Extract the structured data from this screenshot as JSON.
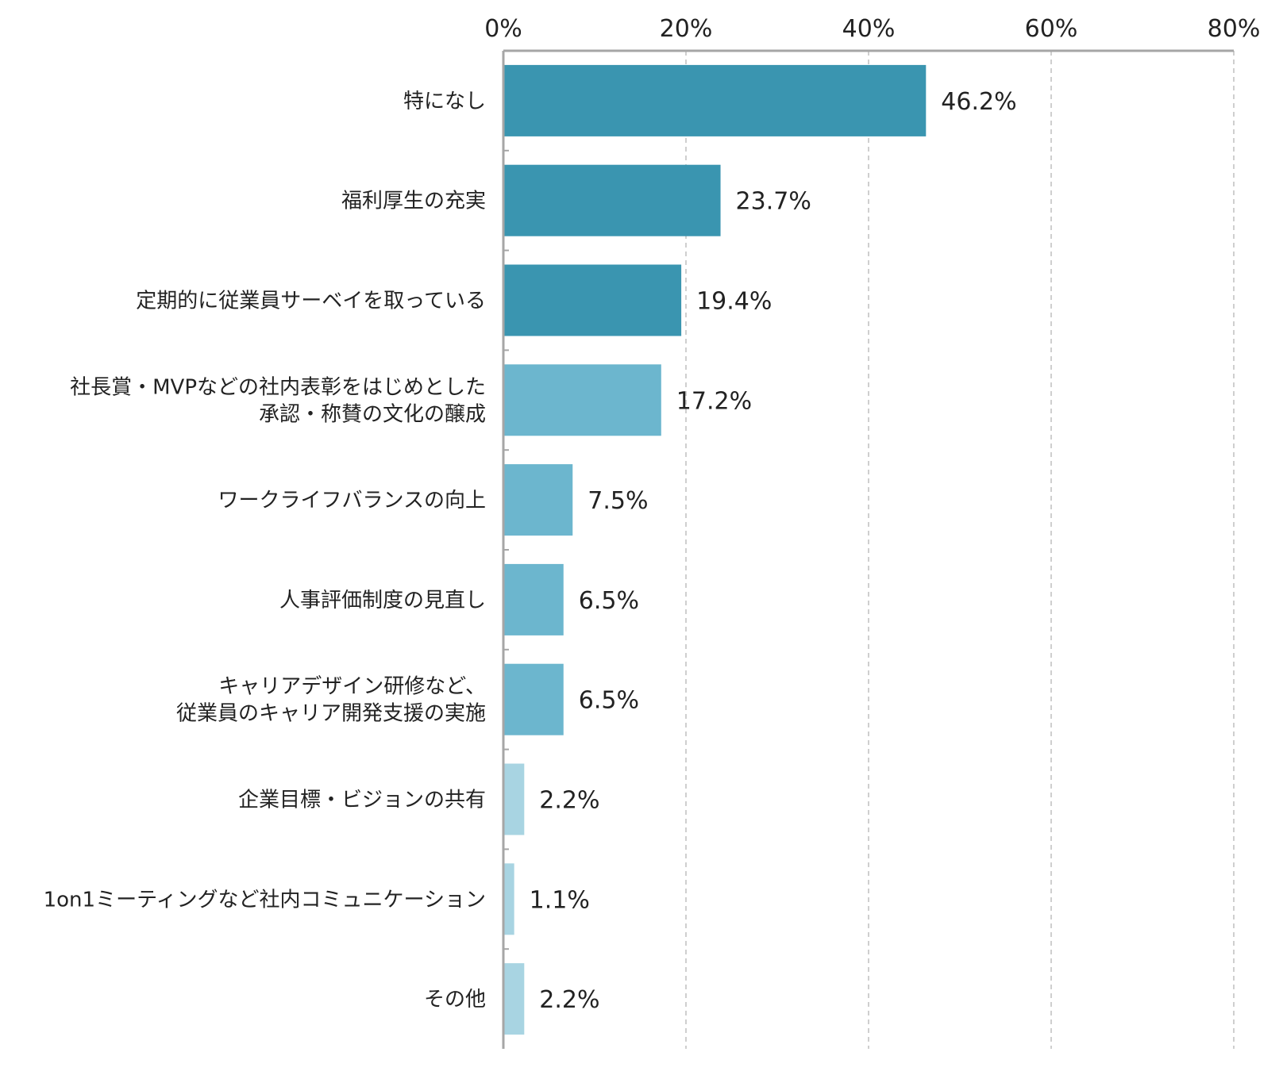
{
  "chart_data": {
    "type": "bar",
    "orientation": "horizontal",
    "title": "",
    "xlabel": "",
    "ylabel": "",
    "xlim": [
      0,
      80
    ],
    "x_ticks": [
      0,
      20,
      40,
      60,
      80
    ],
    "tick_labels": [
      "0%",
      "20%",
      "40%",
      "60%",
      "80%"
    ],
    "tick_axis_position": "top",
    "grid": "vertical dashed",
    "legend": "none",
    "categories": [
      [
        "特になし"
      ],
      [
        "福利厚生の充実"
      ],
      [
        "定期的に従業員サーベイを取っている"
      ],
      [
        "社長賞・MVPなどの社内表彰をはじめとした",
        "承認・称賛の文化の醸成"
      ],
      [
        "ワークライフバランスの向上"
      ],
      [
        "人事評価制度の見直し"
      ],
      [
        "キャリアデザイン研修など、",
        "従業員のキャリア開発支援の実施"
      ],
      [
        "企業目標・ビジョンの共有"
      ],
      [
        "1on1ミーティングなど社内コミュニケーション"
      ],
      [
        "その他"
      ]
    ],
    "values": [
      46.2,
      23.7,
      19.4,
      17.2,
      7.5,
      6.5,
      6.5,
      2.2,
      1.1,
      2.2
    ],
    "value_labels": [
      "46.2%",
      "23.7%",
      "19.4%",
      "17.2%",
      "7.5%",
      "6.5%",
      "6.5%",
      "2.2%",
      "1.1%",
      "2.2%"
    ],
    "bar_color_groups": [
      0,
      0,
      0,
      1,
      1,
      1,
      1,
      2,
      2,
      2
    ]
  },
  "colors": {
    "bar_dark": "#3A95B0",
    "bar_mid": "#6CB6CE",
    "bar_light": "#A8D4E2",
    "axis": "#A6A6A6",
    "grid": "#BFBFBF",
    "text": "#222222"
  }
}
